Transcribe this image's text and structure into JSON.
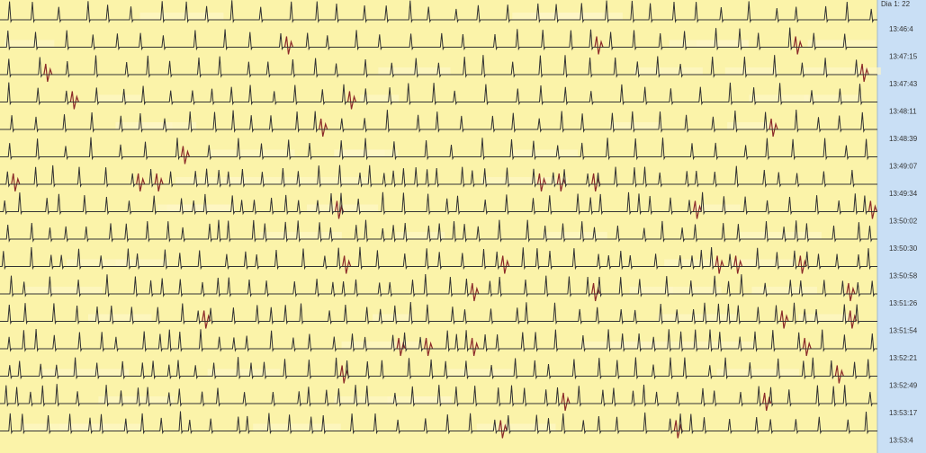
{
  "panel": {
    "header": "Dia 1: 22",
    "times": [
      "13:46:4",
      "13:47:15",
      "13:47:43",
      "13:48:11",
      "13:48:39",
      "13:49:07",
      "13:49:34",
      "13:50:02",
      "13:50:30",
      "13:50:58",
      "13:51:26",
      "13:51:54",
      "13:52:21",
      "13:52:49",
      "13:53:17",
      "13:53:4"
    ]
  }
}
